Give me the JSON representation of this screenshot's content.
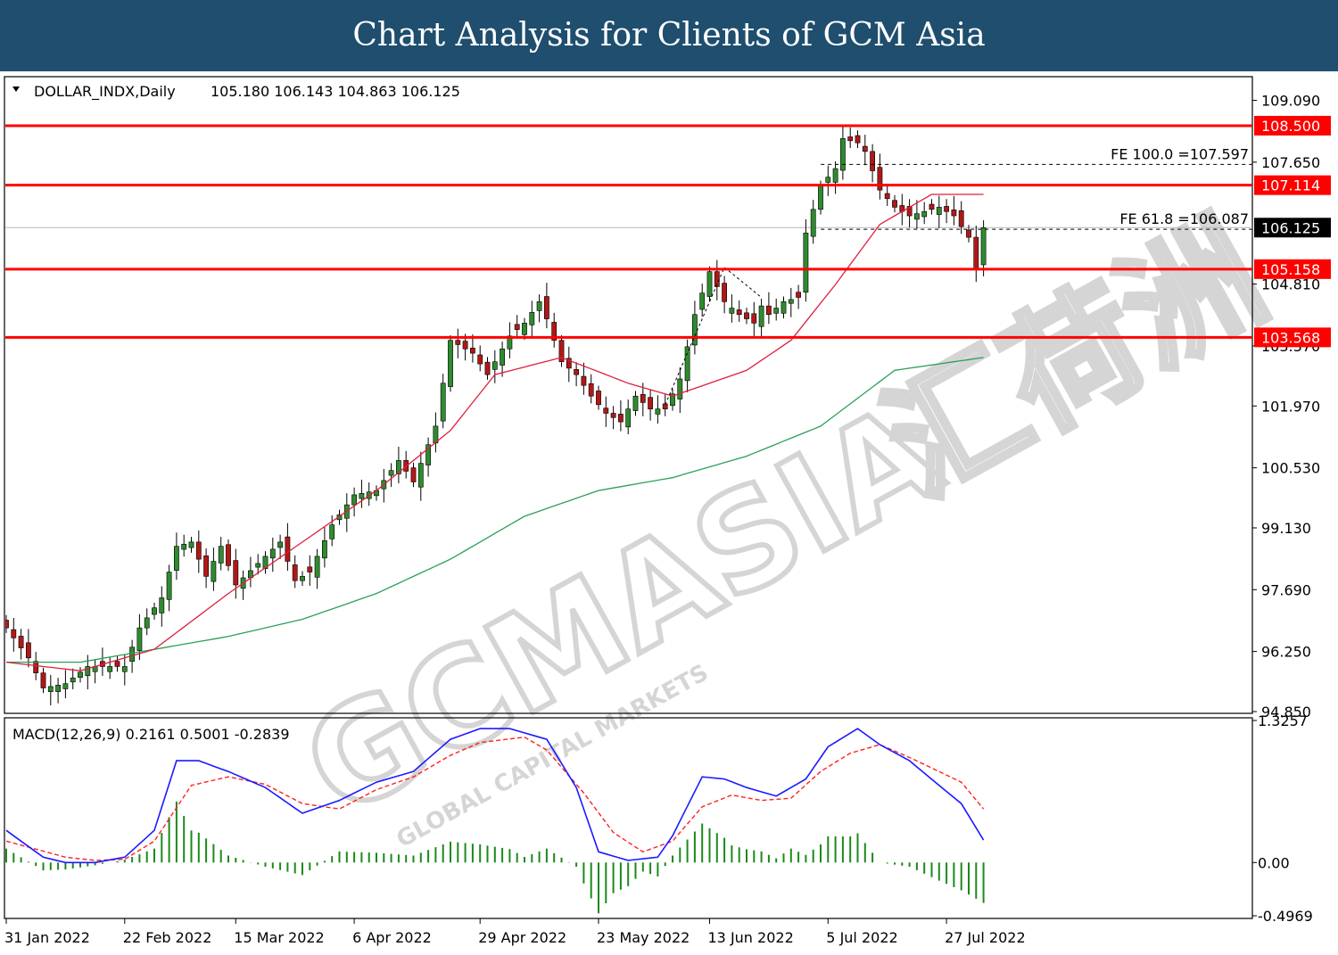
{
  "header": {
    "title": "Chart Analysis for Clients of GCM Asia"
  },
  "watermark": {
    "brand": "GCMASIA",
    "chinese": "汇荷洲",
    "tagline": "GLOBAL CAPITAL MARKETS"
  },
  "colors": {
    "bull": "#2e8b2e",
    "bear": "#b01818",
    "wick": "#000000",
    "sma_fast": "#e01e3c",
    "sma_slow": "#2aa05a",
    "level": "#ff0000",
    "macd": "#1a1aff",
    "signal": "#ff2020",
    "hist": "#1a8a1a"
  },
  "chart_data": [
    {
      "type": "candlestick",
      "symbol_label": "DOLLAR_INDX,Daily",
      "ohlc_label": "105.180 106.143 104.863 106.125",
      "ylim": [
        94.85,
        109.6
      ],
      "y_ticks": [
        "109.090",
        "107.650",
        "104.810",
        "103.370",
        "101.970",
        "100.530",
        "99.130",
        "97.690",
        "96.250",
        "94.850"
      ],
      "x_ticks": [
        {
          "label": "31 Jan 2022",
          "index": 0
        },
        {
          "label": "22 Feb 2022",
          "index": 16
        },
        {
          "label": "15 Mar 2022",
          "index": 31
        },
        {
          "label": "6 Apr 2022",
          "index": 47
        },
        {
          "label": "29 Apr 2022",
          "index": 64
        },
        {
          "label": "23 May 2022",
          "index": 80
        },
        {
          "label": "13 Jun 2022",
          "index": 95
        },
        {
          "label": "5 Jul 2022",
          "index": 111
        },
        {
          "label": "27 Jul 2022",
          "index": 127
        }
      ],
      "levels": [
        {
          "label": "108.500",
          "value": 108.5
        },
        {
          "label": "107.114",
          "value": 107.114
        },
        {
          "label": "105.158",
          "value": 105.158
        },
        {
          "label": "103.568",
          "value": 103.568
        }
      ],
      "last_price": {
        "label": "106.125",
        "value": 106.125
      },
      "fib_extensions": [
        {
          "label": "FE 100.0 =107.597",
          "value": 107.597,
          "start_index": 104
        },
        {
          "label": "FE 61.8 =106.087",
          "value": 106.087,
          "start_index": 104
        }
      ],
      "anchor_closes": [
        [
          0,
          96.8
        ],
        [
          3,
          96.1
        ],
        [
          5,
          95.4
        ],
        [
          8,
          95.5
        ],
        [
          11,
          95.9
        ],
        [
          14,
          95.9
        ],
        [
          16,
          95.9
        ],
        [
          18,
          96.8
        ],
        [
          21,
          97.5
        ],
        [
          23,
          98.7
        ],
        [
          25,
          98.8
        ],
        [
          27,
          98.0
        ],
        [
          29,
          98.7
        ],
        [
          31,
          97.8
        ],
        [
          34,
          98.3
        ],
        [
          37,
          98.8
        ],
        [
          39,
          97.9
        ],
        [
          41,
          98.1
        ],
        [
          44,
          99.2
        ],
        [
          47,
          99.9
        ],
        [
          50,
          100.0
        ],
        [
          53,
          100.7
        ],
        [
          55,
          100.2
        ],
        [
          58,
          101.5
        ],
        [
          60,
          103.5
        ],
        [
          63,
          103.2
        ],
        [
          65,
          102.7
        ],
        [
          68,
          103.6
        ],
        [
          70,
          103.9
        ],
        [
          72,
          104.4
        ],
        [
          73,
          104.0
        ],
        [
          75,
          103.0
        ],
        [
          77,
          102.7
        ],
        [
          79,
          102.2
        ],
        [
          81,
          101.8
        ],
        [
          83,
          101.6
        ],
        [
          85,
          102.2
        ],
        [
          87,
          101.9
        ],
        [
          89,
          101.9
        ],
        [
          91,
          102.6
        ],
        [
          93,
          104.1
        ],
        [
          95,
          105.1
        ],
        [
          97,
          104.4
        ],
        [
          99,
          104.1
        ],
        [
          101,
          103.9
        ],
        [
          102,
          104.3
        ],
        [
          103,
          104.1
        ],
        [
          105,
          104.4
        ],
        [
          107,
          104.5
        ],
        [
          108,
          106.0
        ],
        [
          110,
          107.1
        ],
        [
          112,
          107.5
        ],
        [
          113,
          108.2
        ],
        [
          115,
          108.1
        ],
        [
          116,
          107.9
        ],
        [
          118,
          107.0
        ],
        [
          120,
          106.6
        ],
        [
          122,
          106.4
        ],
        [
          124,
          106.5
        ],
        [
          126,
          106.6
        ],
        [
          128,
          106.4
        ],
        [
          130,
          105.9
        ],
        [
          131,
          105.18
        ],
        [
          132,
          106.125
        ]
      ],
      "sma_fast_anchors": [
        [
          0,
          96.0
        ],
        [
          10,
          95.8
        ],
        [
          20,
          96.3
        ],
        [
          30,
          97.6
        ],
        [
          40,
          98.8
        ],
        [
          50,
          100.0
        ],
        [
          60,
          101.4
        ],
        [
          66,
          102.7
        ],
        [
          75,
          103.1
        ],
        [
          84,
          102.5
        ],
        [
          90,
          102.2
        ],
        [
          100,
          102.8
        ],
        [
          106,
          103.5
        ],
        [
          112,
          104.8
        ],
        [
          118,
          106.2
        ],
        [
          125,
          106.9
        ],
        [
          132,
          106.9
        ]
      ],
      "sma_slow_anchors": [
        [
          0,
          96.0
        ],
        [
          10,
          96.0
        ],
        [
          20,
          96.3
        ],
        [
          30,
          96.6
        ],
        [
          40,
          97.0
        ],
        [
          50,
          97.6
        ],
        [
          60,
          98.4
        ],
        [
          70,
          99.4
        ],
        [
          80,
          100.0
        ],
        [
          90,
          100.3
        ],
        [
          100,
          100.8
        ],
        [
          110,
          101.5
        ],
        [
          120,
          102.8
        ],
        [
          132,
          103.1
        ]
      ]
    },
    {
      "type": "macd",
      "label": "MACD(12,26,9) 0.2161 0.5001 -0.2839",
      "ylim": [
        -0.4969,
        1.3257
      ],
      "y_ticks": [
        "1.3257",
        "0.00",
        "-0.4969"
      ],
      "macd_anchors": [
        [
          0,
          0.3
        ],
        [
          5,
          0.05
        ],
        [
          8,
          0.0
        ],
        [
          12,
          0.0
        ],
        [
          16,
          0.05
        ],
        [
          20,
          0.3
        ],
        [
          23,
          0.95
        ],
        [
          26,
          0.95
        ],
        [
          30,
          0.85
        ],
        [
          35,
          0.7
        ],
        [
          40,
          0.46
        ],
        [
          45,
          0.58
        ],
        [
          50,
          0.75
        ],
        [
          55,
          0.85
        ],
        [
          60,
          1.15
        ],
        [
          64,
          1.25
        ],
        [
          68,
          1.25
        ],
        [
          73,
          1.15
        ],
        [
          77,
          0.7
        ],
        [
          80,
          0.1
        ],
        [
          84,
          0.02
        ],
        [
          88,
          0.05
        ],
        [
          90,
          0.25
        ],
        [
          94,
          0.8
        ],
        [
          97,
          0.78
        ],
        [
          100,
          0.7
        ],
        [
          104,
          0.62
        ],
        [
          108,
          0.78
        ],
        [
          111,
          1.08
        ],
        [
          115,
          1.25
        ],
        [
          118,
          1.1
        ],
        [
          122,
          0.95
        ],
        [
          126,
          0.72
        ],
        [
          129,
          0.55
        ],
        [
          132,
          0.21
        ]
      ],
      "signal_anchors": [
        [
          0,
          0.2
        ],
        [
          8,
          0.05
        ],
        [
          12,
          0.02
        ],
        [
          16,
          0.03
        ],
        [
          20,
          0.2
        ],
        [
          25,
          0.72
        ],
        [
          30,
          0.8
        ],
        [
          35,
          0.73
        ],
        [
          40,
          0.55
        ],
        [
          45,
          0.5
        ],
        [
          50,
          0.68
        ],
        [
          55,
          0.8
        ],
        [
          60,
          1.0
        ],
        [
          64,
          1.12
        ],
        [
          70,
          1.17
        ],
        [
          73,
          1.05
        ],
        [
          78,
          0.65
        ],
        [
          82,
          0.28
        ],
        [
          86,
          0.1
        ],
        [
          90,
          0.2
        ],
        [
          94,
          0.52
        ],
        [
          98,
          0.63
        ],
        [
          102,
          0.58
        ],
        [
          106,
          0.6
        ],
        [
          110,
          0.85
        ],
        [
          114,
          1.02
        ],
        [
          118,
          1.1
        ],
        [
          122,
          0.98
        ],
        [
          126,
          0.85
        ],
        [
          129,
          0.75
        ],
        [
          132,
          0.5
        ]
      ]
    }
  ]
}
